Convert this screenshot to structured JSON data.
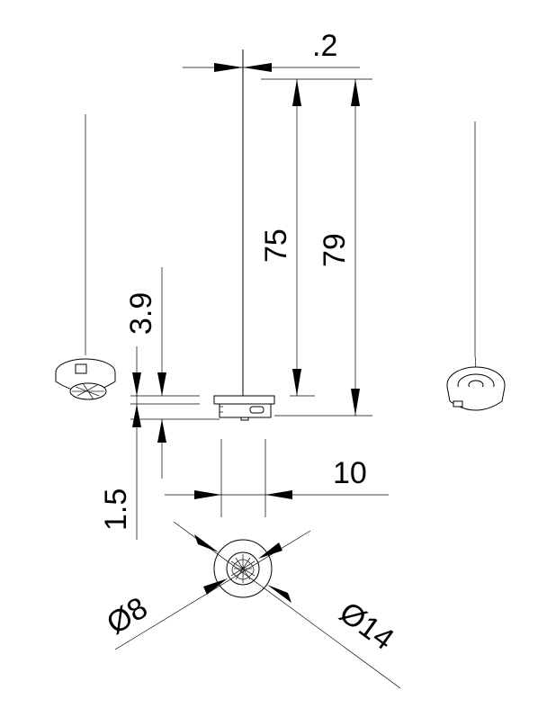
{
  "dimensions": {
    "wire_diameter": ".2",
    "wire_length": "75",
    "overall_length": "79",
    "body_height": "3.9",
    "base_height": "1.5",
    "base_width": "10",
    "inner_diameter": "Ø8",
    "outer_diameter": "Ø14"
  }
}
